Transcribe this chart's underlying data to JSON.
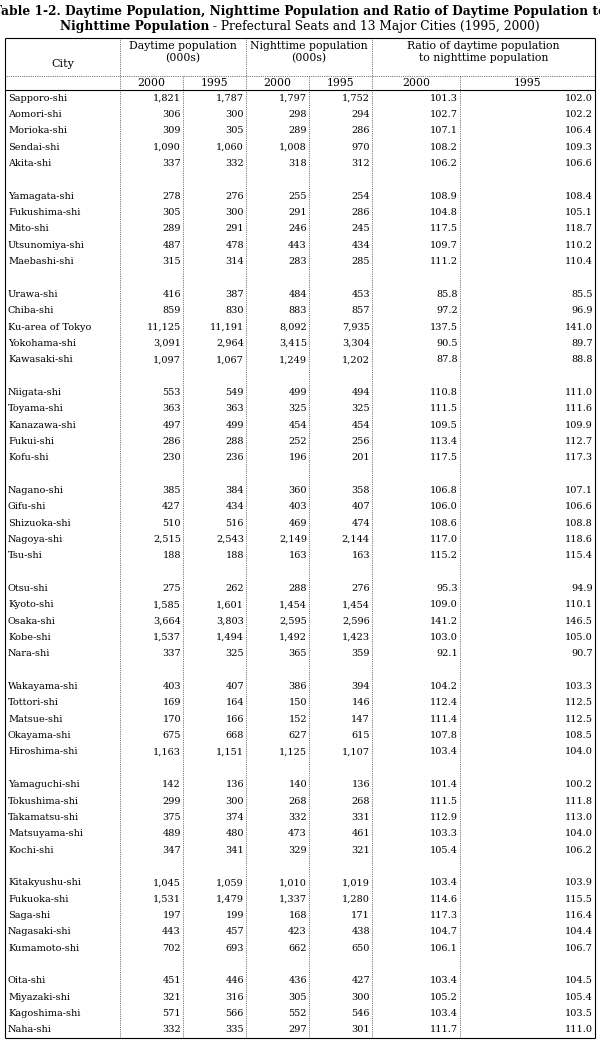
{
  "title_line1": "Table 1-2. Daytime Population, Nighttime Population and Ratio of Daytime Population to",
  "title_line2_bold": "Nighttime Population",
  "title_line2_normal": " - Prefectural Seats and 13 Major Cities (1995, 2000)",
  "rows": [
    [
      "Sapporo-shi",
      "1,821",
      "1,787",
      "1,797",
      "1,752",
      "101.3",
      "102.0"
    ],
    [
      "Aomori-shi",
      "306",
      "300",
      "298",
      "294",
      "102.7",
      "102.2"
    ],
    [
      "Morioka-shi",
      "309",
      "305",
      "289",
      "286",
      "107.1",
      "106.4"
    ],
    [
      "Sendai-shi",
      "1,090",
      "1,060",
      "1,008",
      "970",
      "108.2",
      "109.3"
    ],
    [
      "Akita-shi",
      "337",
      "332",
      "318",
      "312",
      "106.2",
      "106.6"
    ],
    [
      "",
      "",
      "",
      "",
      "",
      "",
      ""
    ],
    [
      "Yamagata-shi",
      "278",
      "276",
      "255",
      "254",
      "108.9",
      "108.4"
    ],
    [
      "Fukushima-shi",
      "305",
      "300",
      "291",
      "286",
      "104.8",
      "105.1"
    ],
    [
      "Mito-shi",
      "289",
      "291",
      "246",
      "245",
      "117.5",
      "118.7"
    ],
    [
      "Utsunomiya-shi",
      "487",
      "478",
      "443",
      "434",
      "109.7",
      "110.2"
    ],
    [
      "Maebashi-shi",
      "315",
      "314",
      "283",
      "285",
      "111.2",
      "110.4"
    ],
    [
      "",
      "",
      "",
      "",
      "",
      "",
      ""
    ],
    [
      "Urawa-shi",
      "416",
      "387",
      "484",
      "453",
      "85.8",
      "85.5"
    ],
    [
      "Chiba-shi",
      "859",
      "830",
      "883",
      "857",
      "97.2",
      "96.9"
    ],
    [
      "Ku-area of Tokyo",
      "11,125",
      "11,191",
      "8,092",
      "7,935",
      "137.5",
      "141.0"
    ],
    [
      "Yokohama-shi",
      "3,091",
      "2,964",
      "3,415",
      "3,304",
      "90.5",
      "89.7"
    ],
    [
      "Kawasaki-shi",
      "1,097",
      "1,067",
      "1,249",
      "1,202",
      "87.8",
      "88.8"
    ],
    [
      "",
      "",
      "",
      "",
      "",
      "",
      ""
    ],
    [
      "Niigata-shi",
      "553",
      "549",
      "499",
      "494",
      "110.8",
      "111.0"
    ],
    [
      "Toyama-shi",
      "363",
      "363",
      "325",
      "325",
      "111.5",
      "111.6"
    ],
    [
      "Kanazawa-shi",
      "497",
      "499",
      "454",
      "454",
      "109.5",
      "109.9"
    ],
    [
      "Fukui-shi",
      "286",
      "288",
      "252",
      "256",
      "113.4",
      "112.7"
    ],
    [
      "Kofu-shi",
      "230",
      "236",
      "196",
      "201",
      "117.5",
      "117.3"
    ],
    [
      "",
      "",
      "",
      "",
      "",
      "",
      ""
    ],
    [
      "Nagano-shi",
      "385",
      "384",
      "360",
      "358",
      "106.8",
      "107.1"
    ],
    [
      "Gifu-shi",
      "427",
      "434",
      "403",
      "407",
      "106.0",
      "106.6"
    ],
    [
      "Shizuoka-shi",
      "510",
      "516",
      "469",
      "474",
      "108.6",
      "108.8"
    ],
    [
      "Nagoya-shi",
      "2,515",
      "2,543",
      "2,149",
      "2,144",
      "117.0",
      "118.6"
    ],
    [
      "Tsu-shi",
      "188",
      "188",
      "163",
      "163",
      "115.2",
      "115.4"
    ],
    [
      "",
      "",
      "",
      "",
      "",
      "",
      ""
    ],
    [
      "Otsu-shi",
      "275",
      "262",
      "288",
      "276",
      "95.3",
      "94.9"
    ],
    [
      "Kyoto-shi",
      "1,585",
      "1,601",
      "1,454",
      "1,454",
      "109.0",
      "110.1"
    ],
    [
      "Osaka-shi",
      "3,664",
      "3,803",
      "2,595",
      "2,596",
      "141.2",
      "146.5"
    ],
    [
      "Kobe-shi",
      "1,537",
      "1,494",
      "1,492",
      "1,423",
      "103.0",
      "105.0"
    ],
    [
      "Nara-shi",
      "337",
      "325",
      "365",
      "359",
      "92.1",
      "90.7"
    ],
    [
      "",
      "",
      "",
      "",
      "",
      "",
      ""
    ],
    [
      "Wakayama-shi",
      "403",
      "407",
      "386",
      "394",
      "104.2",
      "103.3"
    ],
    [
      "Tottori-shi",
      "169",
      "164",
      "150",
      "146",
      "112.4",
      "112.5"
    ],
    [
      "Matsue-shi",
      "170",
      "166",
      "152",
      "147",
      "111.4",
      "112.5"
    ],
    [
      "Okayama-shi",
      "675",
      "668",
      "627",
      "615",
      "107.8",
      "108.5"
    ],
    [
      "Hiroshima-shi",
      "1,163",
      "1,151",
      "1,125",
      "1,107",
      "103.4",
      "104.0"
    ],
    [
      "",
      "",
      "",
      "",
      "",
      "",
      ""
    ],
    [
      "Yamaguchi-shi",
      "142",
      "136",
      "140",
      "136",
      "101.4",
      "100.2"
    ],
    [
      "Tokushima-shi",
      "299",
      "300",
      "268",
      "268",
      "111.5",
      "111.8"
    ],
    [
      "Takamatsu-shi",
      "375",
      "374",
      "332",
      "331",
      "112.9",
      "113.0"
    ],
    [
      "Matsuyama-shi",
      "489",
      "480",
      "473",
      "461",
      "103.3",
      "104.0"
    ],
    [
      "Kochi-shi",
      "347",
      "341",
      "329",
      "321",
      "105.4",
      "106.2"
    ],
    [
      "",
      "",
      "",
      "",
      "",
      "",
      ""
    ],
    [
      "Kitakyushu-shi",
      "1,045",
      "1,059",
      "1,010",
      "1,019",
      "103.4",
      "103.9"
    ],
    [
      "Fukuoka-shi",
      "1,531",
      "1,479",
      "1,337",
      "1,280",
      "114.6",
      "115.5"
    ],
    [
      "Saga-shi",
      "197",
      "199",
      "168",
      "171",
      "117.3",
      "116.4"
    ],
    [
      "Nagasaki-shi",
      "443",
      "457",
      "423",
      "438",
      "104.7",
      "104.4"
    ],
    [
      "Kumamoto-shi",
      "702",
      "693",
      "662",
      "650",
      "106.1",
      "106.7"
    ],
    [
      "",
      "",
      "",
      "",
      "",
      "",
      ""
    ],
    [
      "Oita-shi",
      "451",
      "446",
      "436",
      "427",
      "103.4",
      "104.5"
    ],
    [
      "Miyazaki-shi",
      "321",
      "316",
      "305",
      "300",
      "105.2",
      "105.4"
    ],
    [
      "Kagoshima-shi",
      "571",
      "566",
      "552",
      "546",
      "103.4",
      "103.5"
    ],
    [
      "Naha-shi",
      "332",
      "335",
      "297",
      "301",
      "111.7",
      "111.0"
    ]
  ]
}
